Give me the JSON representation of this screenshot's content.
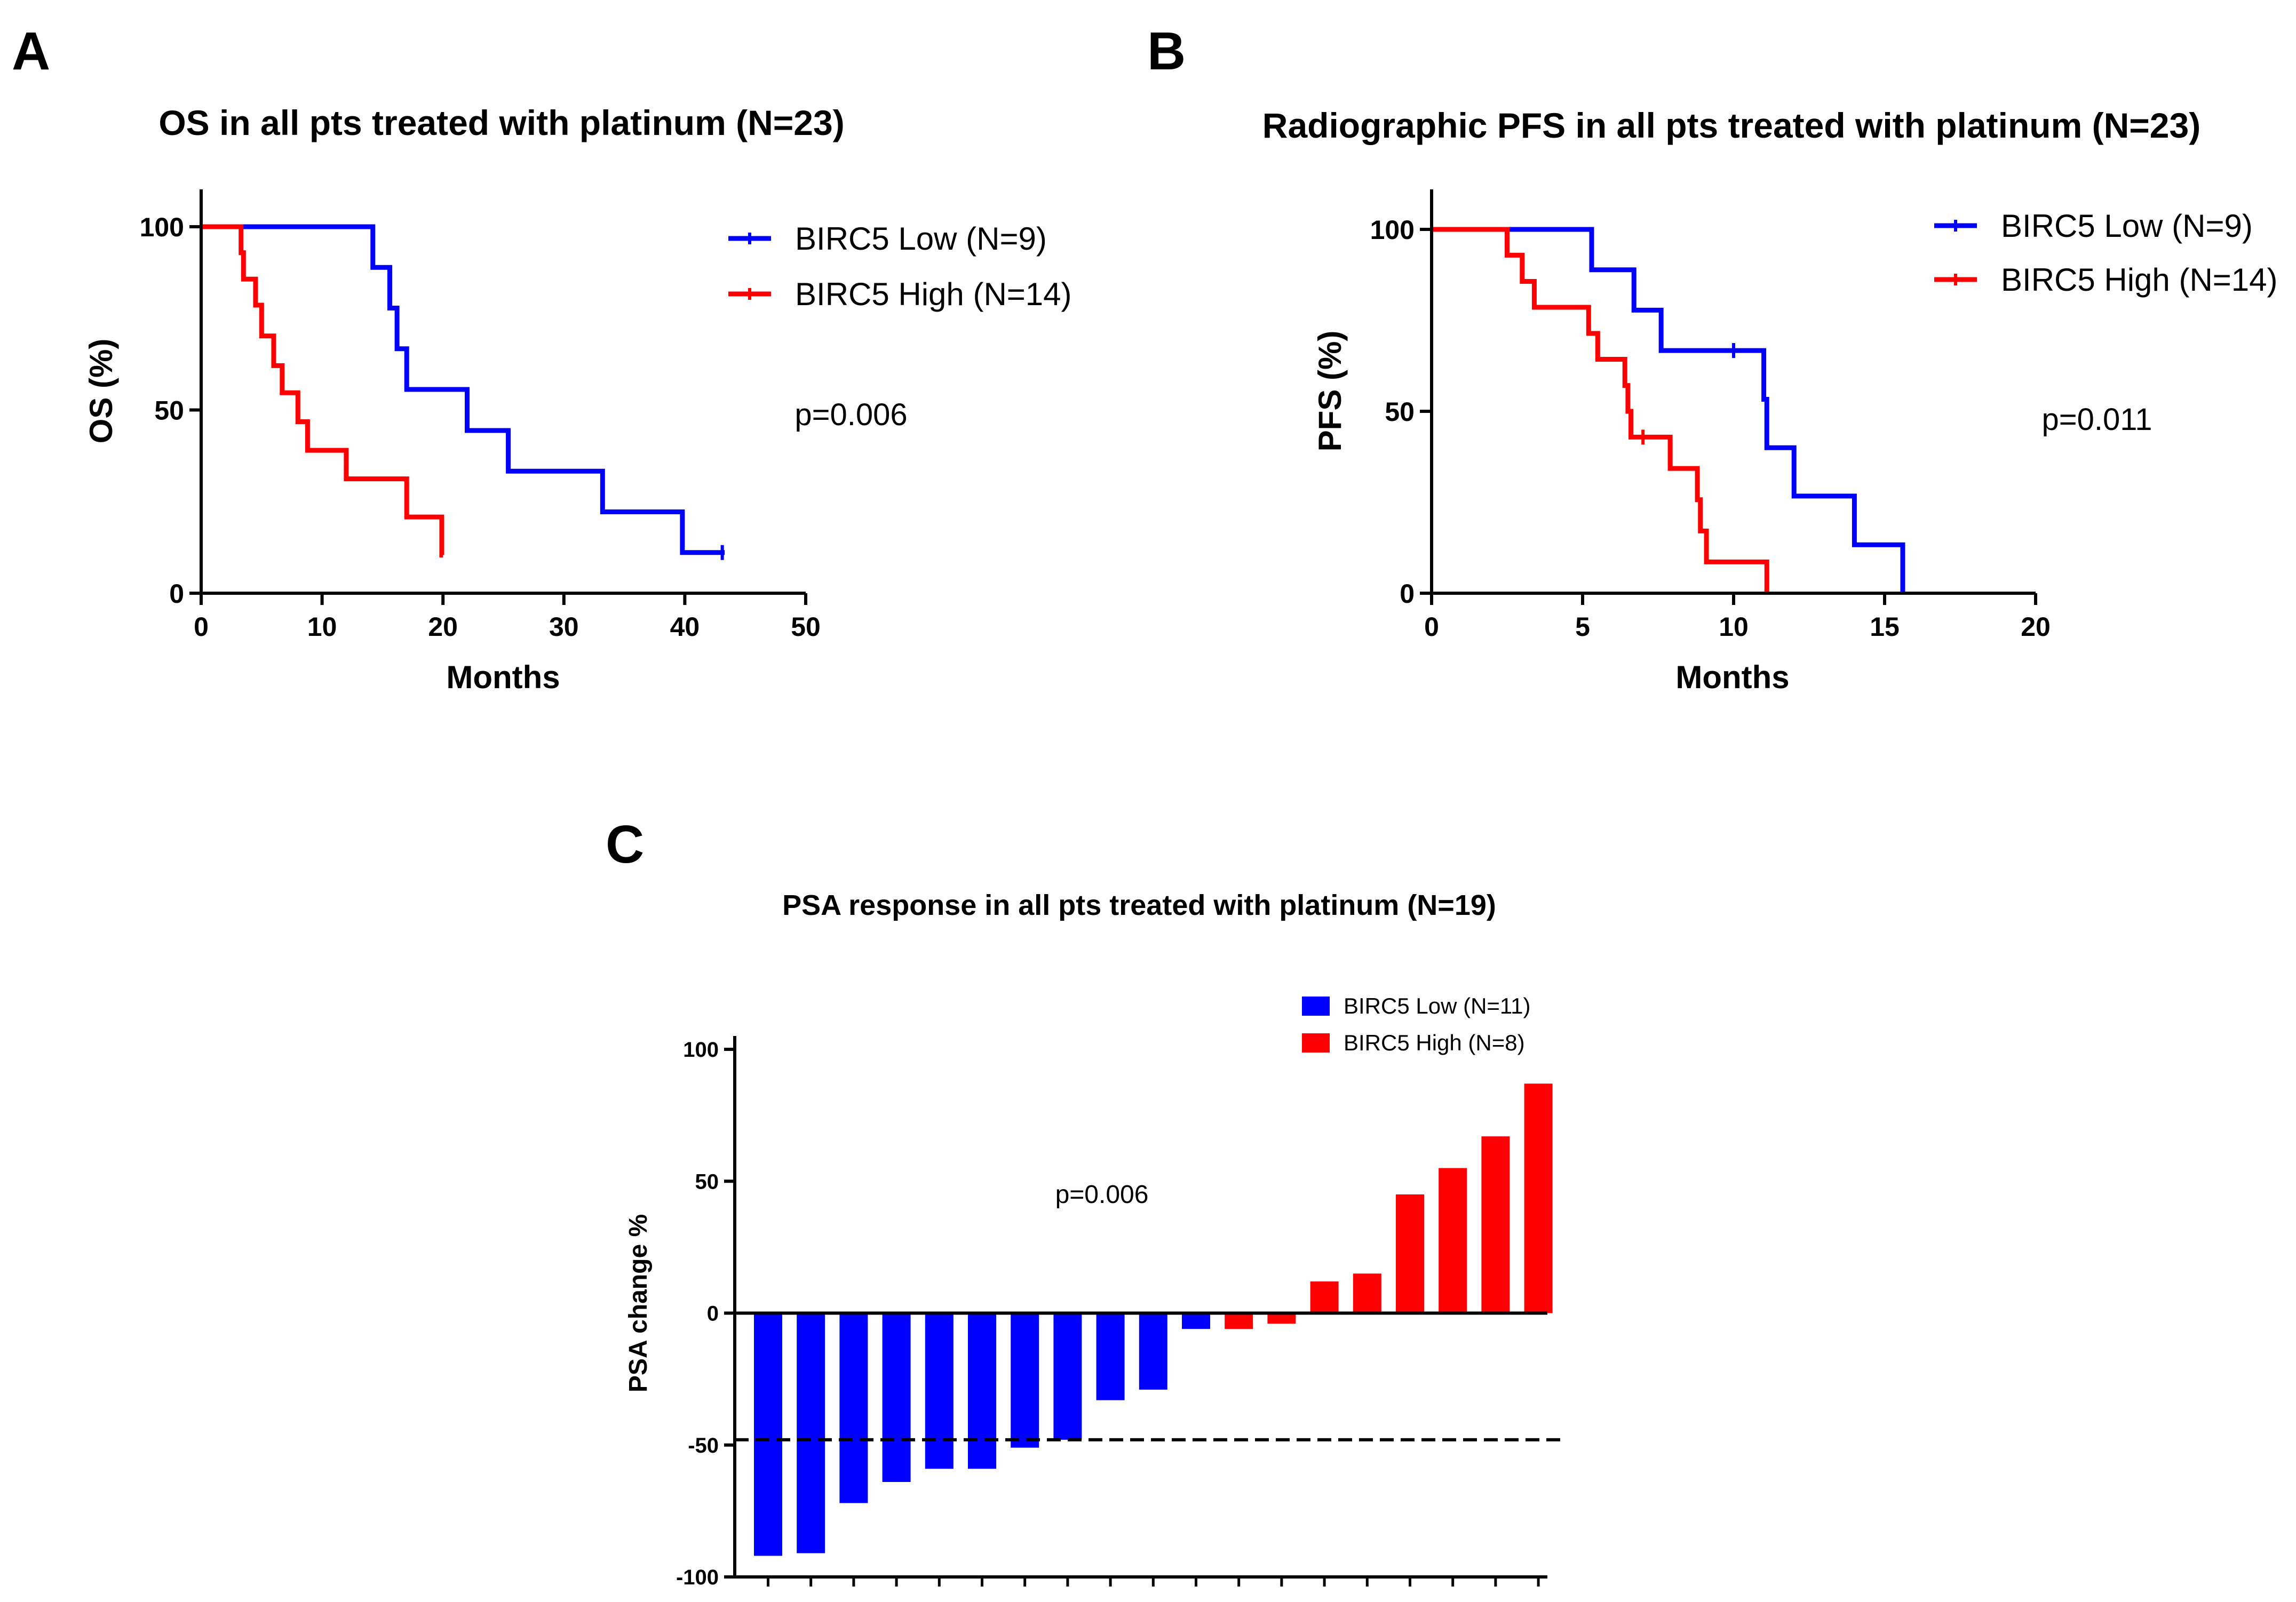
{
  "panels": {
    "a": {
      "label": "A"
    },
    "b": {
      "label": "B"
    },
    "c": {
      "label": "C"
    }
  },
  "colors": {
    "low": "#0000ff",
    "high": "#ff0000",
    "axis": "#000000"
  },
  "chart_data": [
    {
      "id": "a",
      "type": "line",
      "title": "OS in all pts treated with platinum (N=23)",
      "xlabel": "Months",
      "ylabel": "OS (%)",
      "xlim": [
        0,
        50
      ],
      "ylim": [
        0,
        100
      ],
      "xticks": [
        0,
        10,
        20,
        30,
        40,
        50
      ],
      "yticks": [
        0,
        50,
        100
      ],
      "pvalue": "p=0.006",
      "legend_position": "top-right",
      "series": [
        {
          "name": "BIRC5 Low (N=9)",
          "color": "#0000ff",
          "steps": [
            [
              0,
              100
            ],
            [
              14.2,
              88.9
            ],
            [
              15.6,
              77.8
            ],
            [
              16.2,
              66.7
            ],
            [
              17.0,
              55.6
            ],
            [
              22.0,
              44.4
            ],
            [
              25.4,
              33.3
            ],
            [
              33.2,
              22.2
            ],
            [
              39.8,
              11.1
            ]
          ],
          "end": 43.3,
          "censored": [
            [
              43.1,
              11.1
            ]
          ]
        },
        {
          "name": "BIRC5 High (N=14)",
          "color": "#ff0000",
          "steps": [
            [
              0,
              100
            ],
            [
              3.3,
              92.9
            ],
            [
              3.5,
              85.7
            ],
            [
              4.5,
              78.6
            ],
            [
              5.0,
              70.2
            ],
            [
              6.0,
              62.1
            ],
            [
              6.7,
              54.7
            ],
            [
              8.0,
              46.8
            ],
            [
              8.8,
              39.0
            ],
            [
              12.0,
              31.2
            ],
            [
              17.0,
              20.8
            ],
            [
              19.9,
              10.4
            ]
          ],
          "end": 20.0,
          "censored": []
        }
      ]
    },
    {
      "id": "b",
      "type": "line",
      "title": "Radiographic PFS in all pts treated with platinum (N=23)",
      "xlabel": "Months",
      "ylabel": "PFS (%)",
      "xlim": [
        0,
        20
      ],
      "ylim": [
        0,
        100
      ],
      "xticks": [
        0,
        5,
        10,
        15,
        20
      ],
      "yticks": [
        0,
        50,
        100
      ],
      "pvalue": "p=0.011",
      "legend_position": "top-right",
      "series": [
        {
          "name": "BIRC5 Low (N=9)",
          "color": "#0000ff",
          "steps": [
            [
              0,
              100
            ],
            [
              5.3,
              88.9
            ],
            [
              6.7,
              77.8
            ],
            [
              7.6,
              66.7
            ],
            [
              11.0,
              53.3
            ],
            [
              11.1,
              40.0
            ],
            [
              12.0,
              26.7
            ],
            [
              14.0,
              13.3
            ],
            [
              15.6,
              0
            ]
          ],
          "end": 15.6,
          "censored": [
            [
              10.0,
              66.7
            ]
          ]
        },
        {
          "name": "BIRC5 High (N=14)",
          "color": "#ff0000",
          "steps": [
            [
              0,
              100
            ],
            [
              2.5,
              92.9
            ],
            [
              3.0,
              85.7
            ],
            [
              3.4,
              78.6
            ],
            [
              5.2,
              71.4
            ],
            [
              5.5,
              64.3
            ],
            [
              6.4,
              57.1
            ],
            [
              6.5,
              50.0
            ],
            [
              6.6,
              42.9
            ],
            [
              7.9,
              34.3
            ],
            [
              8.8,
              25.7
            ],
            [
              8.9,
              17.1
            ],
            [
              9.1,
              8.6
            ],
            [
              11.1,
              0
            ]
          ],
          "end": 11.1,
          "censored": [
            [
              7.0,
              42.9
            ]
          ]
        }
      ]
    },
    {
      "id": "c",
      "type": "bar",
      "title": "PSA response in all pts treated with platinum (N=19)",
      "ylabel": "PSA change %",
      "ylim": [
        -100,
        100
      ],
      "yticks": [
        -100,
        -50,
        0,
        50,
        100
      ],
      "threshold": -48,
      "pvalue": "p=0.006",
      "legend_position": "top-right",
      "legend": [
        {
          "name": "BIRC5 Low (N=11)",
          "color": "#0000ff"
        },
        {
          "name": "BIRC5 High (N=8)",
          "color": "#ff0000"
        }
      ],
      "values": [
        -92,
        -91,
        -72,
        -64,
        -59,
        -59,
        -51,
        -48,
        -33,
        -29,
        -6,
        -6,
        -4,
        12,
        15,
        45,
        55,
        67,
        87
      ],
      "groups": [
        "low",
        "low",
        "low",
        "low",
        "low",
        "low",
        "low",
        "low",
        "low",
        "low",
        "low",
        "high",
        "high",
        "high",
        "high",
        "high",
        "high",
        "high",
        "high"
      ]
    }
  ]
}
